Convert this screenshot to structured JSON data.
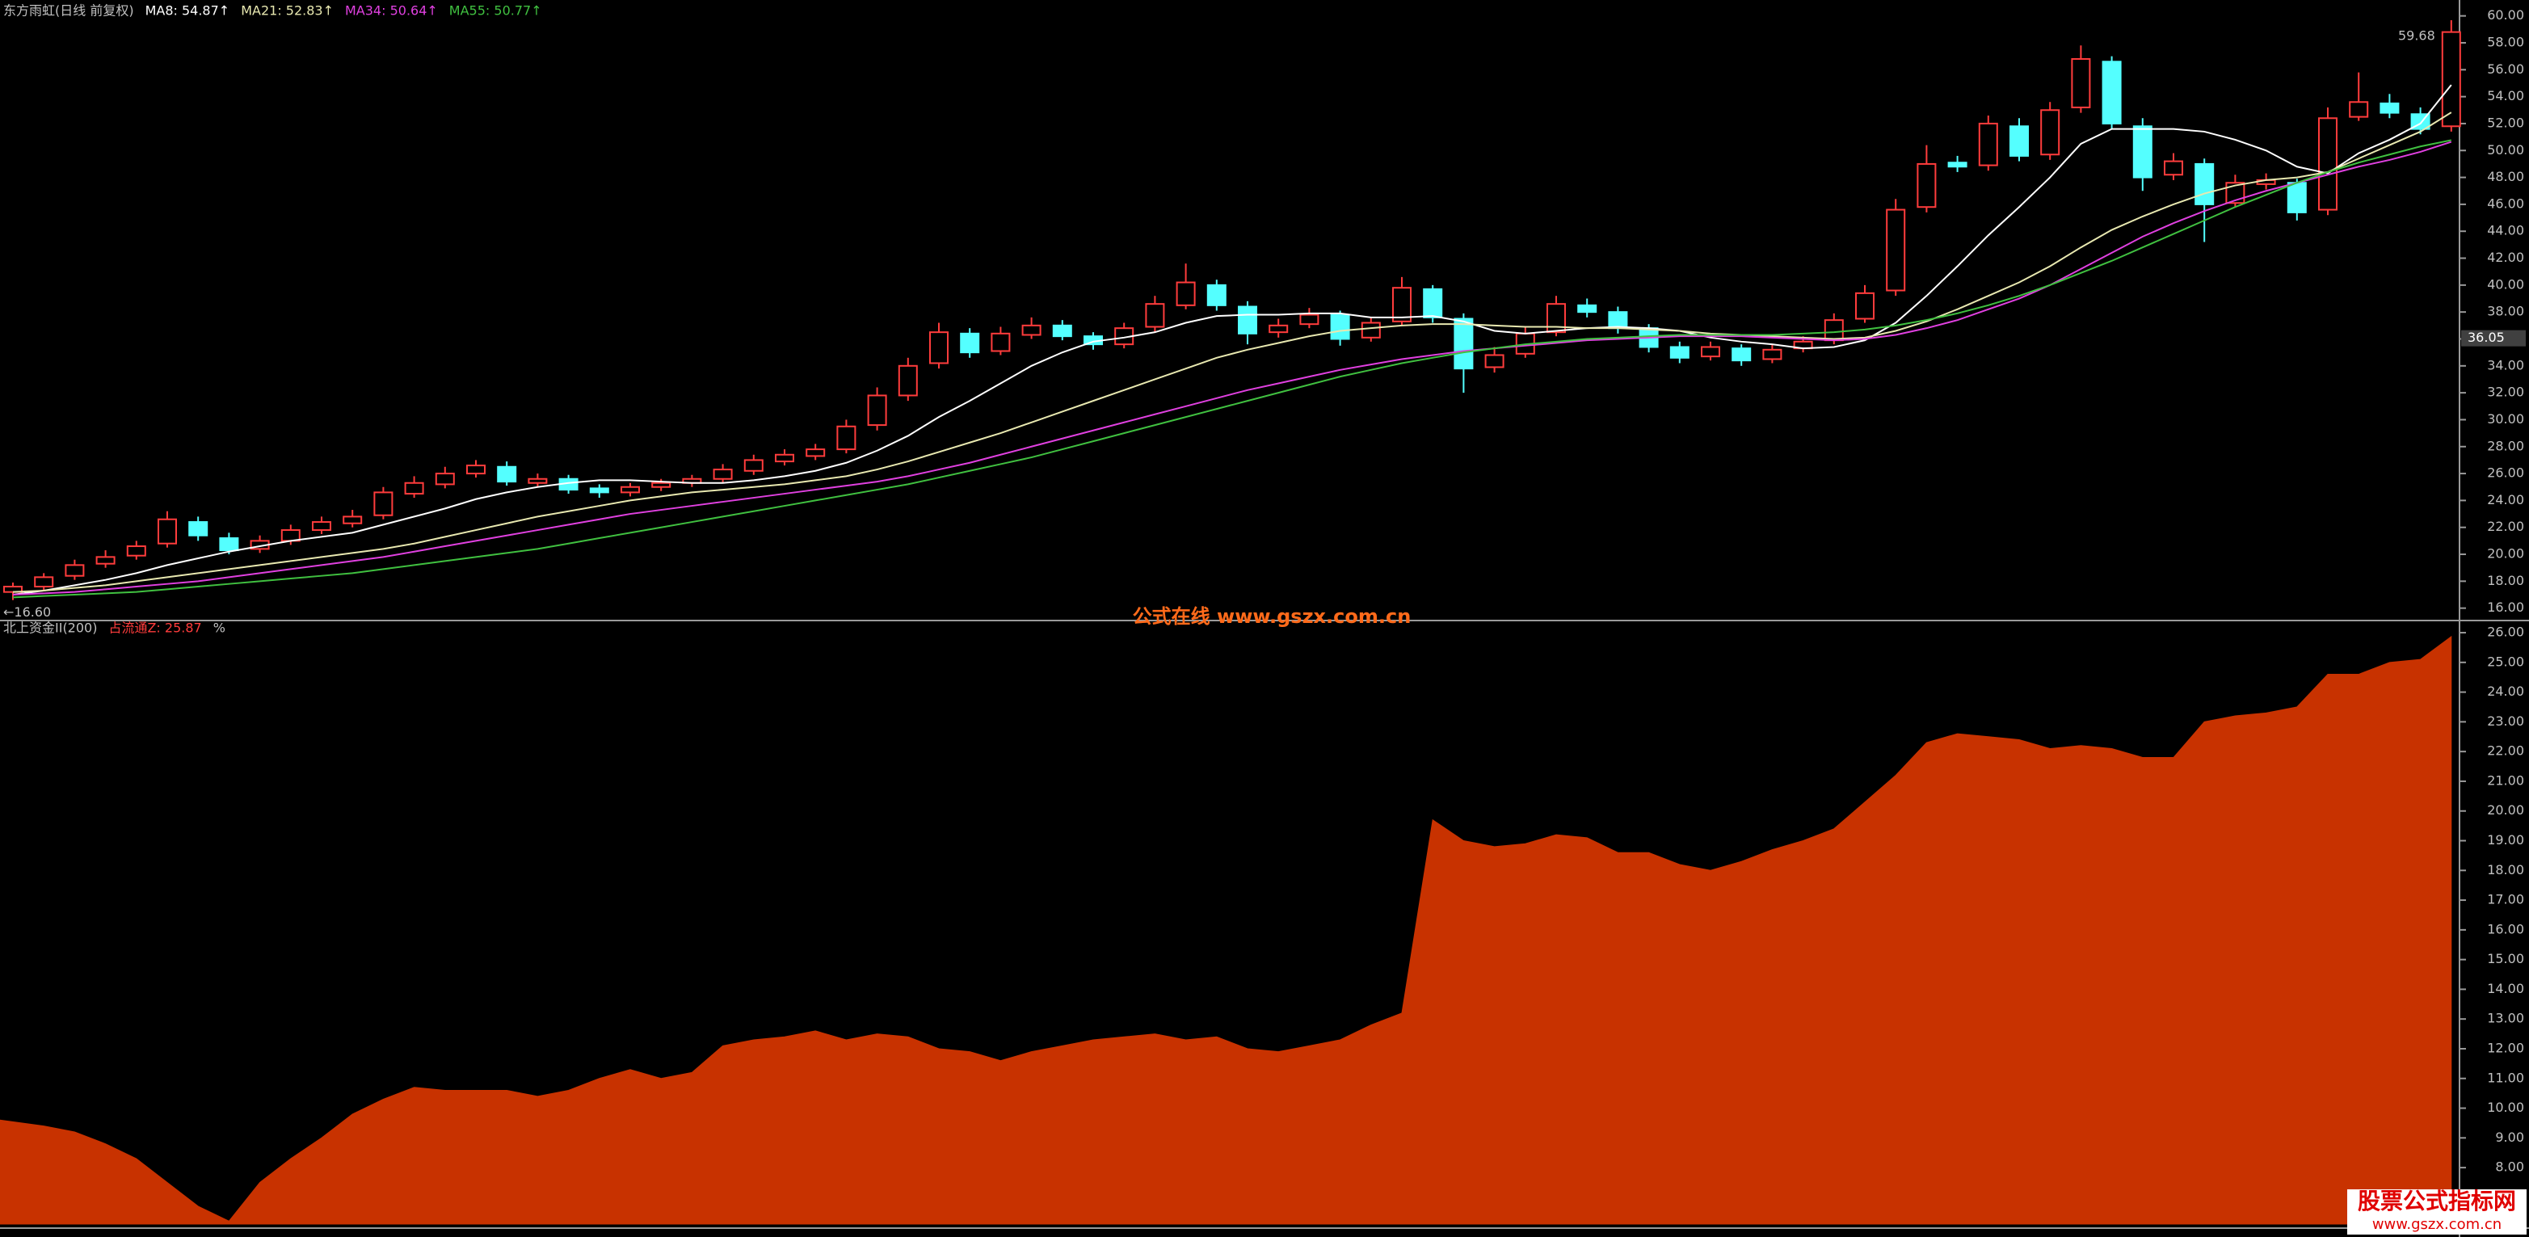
{
  "chart_data": [
    {
      "type": "candlestick",
      "title": "东方雨虹(日线 前复权)",
      "up_color": "#ff3c3c",
      "down_color": "#54ffff",
      "open": [
        17.2,
        17.6,
        18.4,
        19.3,
        19.9,
        20.8,
        22.4,
        21.2,
        20.4,
        21.0,
        21.8,
        22.3,
        22.9,
        24.5,
        25.2,
        26.0,
        26.5,
        25.3,
        25.6,
        24.9,
        24.6,
        25.0,
        25.3,
        25.6,
        26.2,
        26.9,
        27.3,
        27.8,
        29.6,
        31.8,
        34.2,
        36.4,
        35.1,
        36.3,
        37.0,
        36.2,
        35.6,
        36.9,
        38.5,
        40.0,
        38.4,
        36.5,
        37.1,
        37.8,
        36.1,
        37.3,
        39.7,
        37.5,
        33.9,
        34.9,
        36.5,
        38.5,
        38.0,
        36.8,
        35.4,
        34.7,
        35.3,
        34.5,
        35.3,
        35.9,
        37.5,
        39.6,
        45.8,
        49.1,
        48.9,
        51.8,
        49.7,
        53.2,
        56.6,
        51.8,
        48.2,
        49.0,
        46.1,
        47.5,
        47.6,
        45.6,
        52.5,
        53.5,
        52.7,
        51.8
      ],
      "high": [
        17.9,
        18.6,
        19.6,
        20.3,
        21.0,
        23.2,
        22.8,
        21.6,
        21.4,
        22.2,
        22.8,
        23.3,
        25.0,
        25.8,
        26.5,
        27.0,
        26.9,
        26.0,
        25.9,
        25.2,
        25.3,
        25.6,
        25.9,
        26.7,
        27.4,
        27.8,
        28.2,
        30.0,
        32.4,
        34.6,
        37.2,
        36.8,
        36.9,
        37.6,
        37.4,
        36.5,
        37.2,
        39.2,
        41.6,
        40.4,
        38.8,
        37.5,
        38.3,
        38.1,
        37.6,
        40.6,
        40.0,
        37.9,
        35.4,
        36.9,
        39.2,
        39.0,
        38.4,
        37.1,
        35.8,
        35.8,
        35.6,
        35.6,
        36.2,
        37.9,
        40.0,
        46.4,
        50.4,
        49.6,
        52.6,
        52.4,
        53.6,
        57.8,
        57.0,
        52.4,
        49.8,
        49.4,
        48.2,
        48.3,
        47.9,
        53.2,
        55.8,
        54.2,
        53.2,
        59.68
      ],
      "low": [
        16.6,
        17.3,
        18.1,
        19.0,
        19.6,
        20.5,
        21.0,
        20.0,
        20.1,
        20.7,
        21.5,
        22.0,
        22.6,
        24.2,
        24.9,
        25.7,
        25.1,
        25.0,
        24.5,
        24.2,
        24.3,
        24.7,
        25.0,
        25.3,
        25.9,
        26.6,
        27.0,
        27.5,
        29.2,
        31.4,
        33.8,
        34.6,
        34.8,
        36.0,
        35.9,
        35.2,
        35.3,
        36.5,
        38.2,
        38.1,
        35.6,
        36.1,
        36.8,
        35.5,
        35.8,
        37.0,
        37.2,
        32.0,
        33.5,
        34.6,
        36.2,
        37.6,
        36.4,
        35.0,
        34.2,
        34.4,
        34.0,
        34.2,
        35.0,
        35.6,
        37.2,
        39.2,
        45.4,
        48.4,
        48.5,
        49.2,
        49.3,
        52.8,
        51.6,
        47.0,
        47.8,
        43.2,
        45.8,
        47.1,
        44.8,
        45.2,
        52.2,
        52.4,
        51.2,
        51.4
      ],
      "close": [
        17.6,
        18.3,
        19.2,
        19.8,
        20.6,
        22.6,
        21.4,
        20.3,
        21.0,
        21.8,
        22.4,
        22.8,
        24.6,
        25.3,
        26.0,
        26.6,
        25.4,
        25.6,
        24.8,
        24.6,
        25.0,
        25.3,
        25.6,
        26.3,
        27.0,
        27.4,
        27.8,
        29.5,
        31.8,
        34.0,
        36.5,
        35.0,
        36.4,
        37.0,
        36.2,
        35.6,
        36.8,
        38.6,
        40.2,
        38.5,
        36.4,
        37.0,
        37.8,
        36.0,
        37.2,
        39.8,
        37.6,
        33.8,
        34.8,
        36.4,
        38.6,
        38.0,
        36.8,
        35.4,
        34.6,
        35.4,
        34.4,
        35.2,
        35.8,
        37.4,
        39.4,
        45.6,
        49.0,
        48.8,
        52.0,
        49.6,
        53.0,
        56.8,
        52.0,
        48.0,
        49.2,
        46.0,
        47.6,
        47.8,
        45.4,
        52.4,
        53.6,
        52.8,
        51.6,
        58.8
      ],
      "series": [
        {
          "name": "MA8: 54.87↑",
          "color": "#ffffff",
          "values": [
            17.0,
            17.3,
            17.7,
            18.1,
            18.6,
            19.2,
            19.7,
            20.2,
            20.6,
            21.0,
            21.3,
            21.6,
            22.2,
            22.8,
            23.4,
            24.1,
            24.6,
            25.0,
            25.3,
            25.5,
            25.5,
            25.4,
            25.3,
            25.3,
            25.5,
            25.8,
            26.2,
            26.8,
            27.7,
            28.8,
            30.2,
            31.4,
            32.7,
            34.0,
            35.0,
            35.8,
            36.1,
            36.5,
            37.2,
            37.7,
            37.8,
            37.8,
            37.9,
            37.9,
            37.6,
            37.6,
            37.7,
            37.3,
            36.6,
            36.4,
            36.6,
            36.8,
            36.9,
            36.8,
            36.6,
            36.1,
            35.8,
            35.6,
            35.3,
            35.4,
            35.9,
            37.2,
            39.2,
            41.4,
            43.7,
            45.8,
            48.0,
            50.5,
            51.6,
            51.6,
            51.6,
            51.4,
            50.8,
            50.0,
            48.8,
            48.3,
            49.8,
            50.8,
            52.0,
            54.87
          ]
        },
        {
          "name": "MA21: 52.83↑",
          "color": "#e8e8b0",
          "values": [
            17.2,
            17.3,
            17.5,
            17.7,
            18.0,
            18.3,
            18.6,
            18.9,
            19.2,
            19.5,
            19.8,
            20.1,
            20.4,
            20.8,
            21.3,
            21.8,
            22.3,
            22.8,
            23.2,
            23.6,
            24.0,
            24.3,
            24.6,
            24.8,
            25.0,
            25.2,
            25.5,
            25.8,
            26.3,
            26.9,
            27.6,
            28.3,
            29.0,
            29.8,
            30.6,
            31.4,
            32.2,
            33.0,
            33.8,
            34.6,
            35.2,
            35.7,
            36.2,
            36.6,
            36.8,
            37.0,
            37.1,
            37.1,
            37.0,
            36.9,
            36.9,
            36.8,
            36.8,
            36.7,
            36.6,
            36.4,
            36.3,
            36.2,
            36.1,
            36.0,
            36.1,
            36.6,
            37.3,
            38.2,
            39.2,
            40.2,
            41.4,
            42.8,
            44.1,
            45.1,
            46.0,
            46.8,
            47.4,
            47.8,
            48.0,
            48.4,
            49.4,
            50.4,
            51.4,
            52.83
          ]
        },
        {
          "name": "MA34: 50.64↑",
          "color": "#e040e0",
          "values": [
            17.0,
            17.1,
            17.2,
            17.4,
            17.6,
            17.8,
            18.0,
            18.3,
            18.6,
            18.9,
            19.2,
            19.5,
            19.8,
            20.2,
            20.6,
            21.0,
            21.4,
            21.8,
            22.2,
            22.6,
            23.0,
            23.3,
            23.6,
            23.9,
            24.2,
            24.5,
            24.8,
            25.1,
            25.4,
            25.8,
            26.3,
            26.8,
            27.4,
            28.0,
            28.6,
            29.2,
            29.8,
            30.4,
            31.0,
            31.6,
            32.2,
            32.7,
            33.2,
            33.7,
            34.1,
            34.5,
            34.8,
            35.1,
            35.3,
            35.5,
            35.7,
            35.9,
            36.0,
            36.1,
            36.2,
            36.2,
            36.2,
            36.1,
            36.0,
            35.9,
            36.0,
            36.3,
            36.8,
            37.4,
            38.2,
            39.0,
            40.0,
            41.2,
            42.4,
            43.6,
            44.6,
            45.5,
            46.3,
            47.0,
            47.6,
            48.2,
            48.8,
            49.3,
            49.9,
            50.64
          ]
        },
        {
          "name": "MA55: 50.77↑",
          "color": "#40c040",
          "values": [
            16.8,
            16.9,
            17.0,
            17.1,
            17.2,
            17.4,
            17.6,
            17.8,
            18.0,
            18.2,
            18.4,
            18.6,
            18.9,
            19.2,
            19.5,
            19.8,
            20.1,
            20.4,
            20.8,
            21.2,
            21.6,
            22.0,
            22.4,
            22.8,
            23.2,
            23.6,
            24.0,
            24.4,
            24.8,
            25.2,
            25.7,
            26.2,
            26.7,
            27.2,
            27.8,
            28.4,
            29.0,
            29.6,
            30.2,
            30.8,
            31.4,
            32.0,
            32.6,
            33.2,
            33.7,
            34.2,
            34.6,
            35.0,
            35.3,
            35.6,
            35.8,
            36.0,
            36.1,
            36.2,
            36.3,
            36.3,
            36.3,
            36.3,
            36.4,
            36.5,
            36.7,
            37.0,
            37.4,
            37.9,
            38.5,
            39.2,
            40.0,
            40.9,
            41.8,
            42.8,
            43.8,
            44.8,
            45.8,
            46.7,
            47.6,
            48.4,
            49.1,
            49.7,
            50.3,
            50.77
          ]
        }
      ],
      "ylim": [
        15.2,
        60.7
      ],
      "yticks": [
        {
          "value": 16,
          "label": "16.00"
        },
        {
          "value": 18,
          "label": "18.00"
        },
        {
          "value": 20,
          "label": "20.00"
        },
        {
          "value": 22,
          "label": "22.00"
        },
        {
          "value": 24,
          "label": "24.00"
        },
        {
          "value": 26,
          "label": "26.00"
        },
        {
          "value": 28,
          "label": "28.00"
        },
        {
          "value": 30,
          "label": "30.00"
        },
        {
          "value": 32,
          "label": "32.00"
        },
        {
          "value": 34,
          "label": "34.00"
        },
        {
          "value": 36,
          "label": "36.00"
        },
        {
          "value": 38,
          "label": "38.00"
        },
        {
          "value": 40,
          "label": "40.00"
        },
        {
          "value": 42,
          "label": "42.00"
        },
        {
          "value": 44,
          "label": "44.00"
        },
        {
          "value": 46,
          "label": "46.00"
        },
        {
          "value": 48,
          "label": "48.00"
        },
        {
          "value": 50,
          "label": "50.00"
        },
        {
          "value": 52,
          "label": "52.00"
        },
        {
          "value": 54,
          "label": "54.00"
        },
        {
          "value": 56,
          "label": "56.00"
        },
        {
          "value": 58,
          "label": "58.00"
        },
        {
          "value": 60,
          "label": "60.00"
        }
      ],
      "annotations": [
        {
          "value": 59.68,
          "label": "59.68"
        },
        {
          "value": 16.6,
          "label": "←16.60"
        }
      ],
      "price_marker": {
        "value": 36.05,
        "label": "36.05"
      }
    },
    {
      "type": "area",
      "title": "北上资金II(200)",
      "unit": "%",
      "series": [
        {
          "name": "占流通Z: 25.87",
          "color": "#c83200",
          "values": [
            9.6,
            9.4,
            9.2,
            8.8,
            8.3,
            7.5,
            6.7,
            6.2,
            7.5,
            8.3,
            9.0,
            9.8,
            10.3,
            10.7,
            10.6,
            10.6,
            10.6,
            10.4,
            10.6,
            11.0,
            11.3,
            11.0,
            11.2,
            12.1,
            12.3,
            12.4,
            12.6,
            12.3,
            12.5,
            12.4,
            12.0,
            11.9,
            11.6,
            11.9,
            12.1,
            12.3,
            12.4,
            12.5,
            12.3,
            12.4,
            12.0,
            11.9,
            12.1,
            12.3,
            12.8,
            13.2,
            19.7,
            19.0,
            18.8,
            18.9,
            19.2,
            19.1,
            18.6,
            18.6,
            18.2,
            18.0,
            18.3,
            18.7,
            19.0,
            19.4,
            20.3,
            21.2,
            22.3,
            22.6,
            22.5,
            22.4,
            22.1,
            22.2,
            22.1,
            21.8,
            21.8,
            23.0,
            23.2,
            23.3,
            23.5,
            24.6,
            24.6,
            25.0,
            25.1,
            25.87
          ]
        }
      ],
      "ylim": [
        6.1,
        26.3
      ],
      "yticks": [
        {
          "value": 8,
          "label": "8.00"
        },
        {
          "value": 9,
          "label": "9.00"
        },
        {
          "value": 10,
          "label": "10.00"
        },
        {
          "value": 11,
          "label": "11.00"
        },
        {
          "value": 12,
          "label": "12.00"
        },
        {
          "value": 13,
          "label": "13.00"
        },
        {
          "value": 14,
          "label": "14.00"
        },
        {
          "value": 15,
          "label": "15.00"
        },
        {
          "value": 16,
          "label": "16.00"
        },
        {
          "value": 17,
          "label": "17.00"
        },
        {
          "value": 18,
          "label": "18.00"
        },
        {
          "value": 19,
          "label": "19.00"
        },
        {
          "value": 20,
          "label": "20.00"
        },
        {
          "value": 21,
          "label": "21.00"
        },
        {
          "value": 22,
          "label": "22.00"
        },
        {
          "value": 23,
          "label": "23.00"
        },
        {
          "value": 24,
          "label": "24.00"
        },
        {
          "value": 25,
          "label": "25.00"
        },
        {
          "value": 26,
          "label": "26.00"
        }
      ]
    }
  ],
  "watermark": "公式在线 www.gszx.com.cn",
  "logo": {
    "title": "股票公式指标网",
    "url": "www.gszx.com.cn"
  }
}
